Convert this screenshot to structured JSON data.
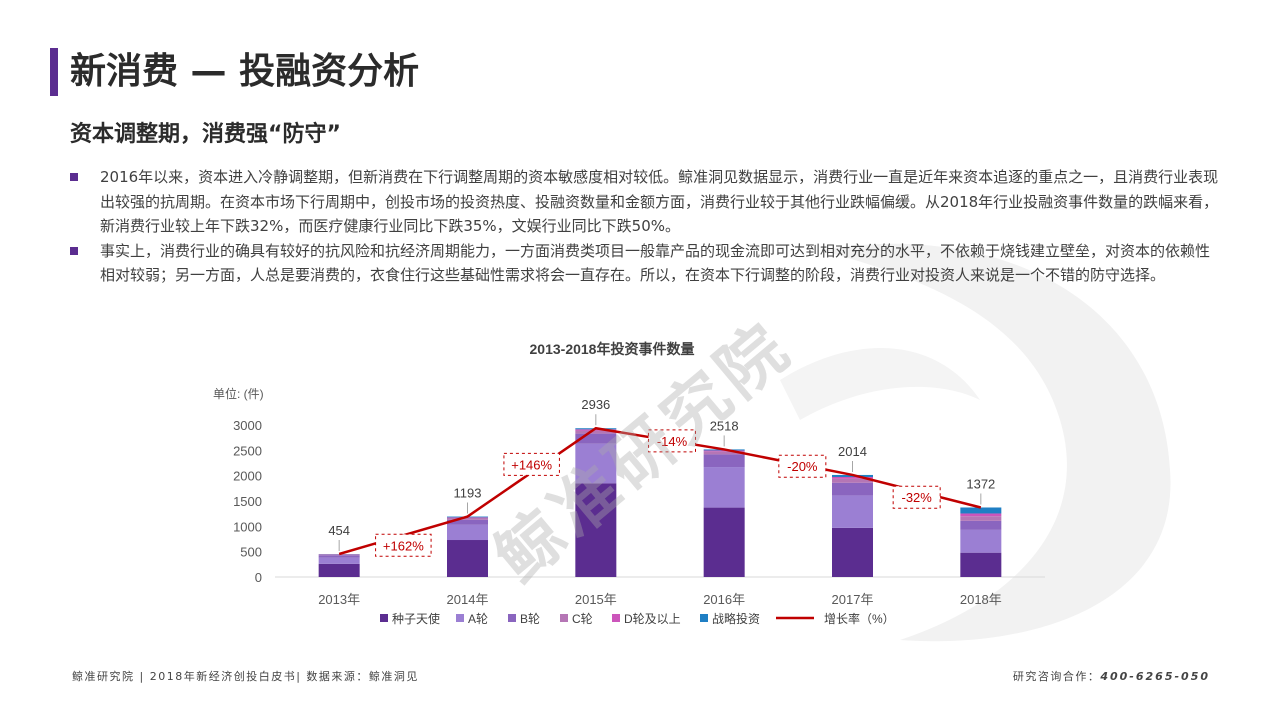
{
  "header": {
    "title": "新消费 — 投融资分析",
    "subtitle": "资本调整期，消费强“防守”"
  },
  "body": {
    "bullets": [
      "2016年以来，资本进入冷静调整期，但新消费在下行调整周期的资本敏感度相对较低。鲸准洞见数据显示，消费行业一直是近年来资本追逐的重点之一，且消费行业表现出较强的抗周期。在资本市场下行周期中，创投市场的投资热度、投融资数量和金额方面，消费行业较于其他行业跌幅偏缓。从2018年行业投融资事件数量的跌幅来看，新消费行业较上年下跌32%，而医疗健康行业同比下跌35%，文娱行业同比下跌50%。",
      "事实上，消费行业的确具有较好的抗风险和抗经济周期能力，一方面消费类项目一般靠产品的现金流即可达到相对充分的水平，不依赖于烧钱建立壁垒，对资本的依赖性相对较弱；另一方面，人总是要消费的，衣食住行这些基础性需求将会一直存在。所以，在资本下行调整的阶段，消费行业对投资人来说是一个不错的防守选择。"
    ]
  },
  "watermark": {
    "text": "鲸准研究院"
  },
  "chart_data": {
    "type": "bar",
    "stacked": true,
    "title": "2013-2018年投资事件数量",
    "ylabel": "单位: (件)",
    "ylim": [
      0,
      3000
    ],
    "yticks": [
      0,
      500,
      1000,
      1500,
      2000,
      2500,
      3000
    ],
    "categories": [
      "2013年",
      "2014年",
      "2015年",
      "2016年",
      "2017年",
      "2018年"
    ],
    "series": [
      {
        "name": "种子天使",
        "color": "#5b2d90",
        "values": [
          260,
          730,
          1850,
          1370,
          970,
          480
        ]
      },
      {
        "name": "A轮",
        "color": "#9b7fd3",
        "values": [
          120,
          300,
          780,
          800,
          640,
          450
        ]
      },
      {
        "name": "B轮",
        "color": "#8a65bf",
        "values": [
          50,
          100,
          200,
          250,
          250,
          180
        ]
      },
      {
        "name": "C轮",
        "color": "#b576b5",
        "values": [
          15,
          35,
          60,
          60,
          80,
          90
        ]
      },
      {
        "name": "D轮及以上",
        "color": "#cc55bb",
        "values": [
          5,
          12,
          25,
          18,
          34,
          54
        ]
      },
      {
        "name": "战略投资",
        "color": "#1f7fc4",
        "values": [
          4,
          16,
          21,
          20,
          40,
          118
        ]
      }
    ],
    "totals": [
      454,
      1193,
      2936,
      2518,
      2014,
      1372
    ],
    "growth_line": {
      "name": "增长率（%）",
      "color": "#c00000",
      "labels": [
        "+162%",
        "+146%",
        "-14%",
        "-20%",
        "-32%"
      ]
    },
    "legend_position": "bottom",
    "grid": false
  },
  "footer": {
    "left": "鲸准研究院 | 2018年新经济创投白皮书| 数据来源：鲸准洞见",
    "right_label": "研究咨询合作：",
    "phone": "400-6265-050"
  }
}
